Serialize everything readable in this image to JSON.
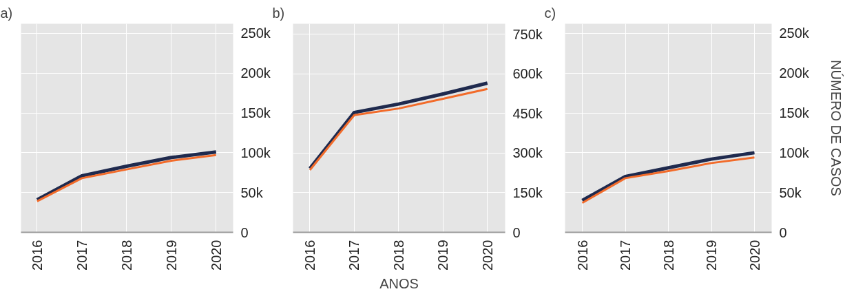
{
  "chart_data": [
    {
      "type": "line",
      "title": "a)",
      "x": [
        2016,
        2017,
        2018,
        2019,
        2020
      ],
      "xlim": [
        2015.64,
        2020.38
      ],
      "xticks": [
        2016,
        2017,
        2018,
        2019,
        2020
      ],
      "ylim": [
        0,
        262000
      ],
      "yticks": [
        0,
        {
          "value": 50000,
          "label": "50k"
        },
        {
          "value": 100000,
          "label": "100k"
        },
        {
          "value": 150000,
          "label": "150k"
        },
        {
          "value": 200000,
          "label": "200k"
        },
        {
          "value": 250000,
          "label": "250k"
        }
      ],
      "grid": true,
      "series": [
        {
          "color": "#1f2a4e",
          "values": [
            41000,
            71000,
            83000,
            94000,
            101000
          ]
        },
        {
          "color": "#f26b2a",
          "values": [
            39000,
            68000,
            79000,
            90000,
            97000
          ]
        }
      ]
    },
    {
      "type": "line",
      "title": "b)",
      "xlabel": "ANOS",
      "x": [
        2016,
        2017,
        2018,
        2019,
        2020
      ],
      "xlim": [
        2015.62,
        2020.4
      ],
      "xticks": [
        2016,
        2017,
        2018,
        2019,
        2020
      ],
      "ylim": [
        0,
        790000
      ],
      "yticks": [
        0,
        {
          "value": 150000,
          "label": "150k"
        },
        {
          "value": 300000,
          "label": "300k"
        },
        {
          "value": 450000,
          "label": "450k"
        },
        {
          "value": 600000,
          "label": "600k"
        },
        {
          "value": 750000,
          "label": "750k"
        }
      ],
      "grid": true,
      "series": [
        {
          "color": "#1f2a4e",
          "values": [
            242000,
            454000,
            486000,
            524000,
            565000
          ]
        },
        {
          "color": "#f26b2a",
          "values": [
            236000,
            444000,
            469000,
            506000,
            543000
          ]
        }
      ]
    },
    {
      "type": "line",
      "title": "c)",
      "ylabel": "NÚMERO DE CASOS",
      "x": [
        2016,
        2017,
        2018,
        2019,
        2020
      ],
      "xlim": [
        2015.6,
        2020.4
      ],
      "xticks": [
        2016,
        2017,
        2018,
        2019,
        2020
      ],
      "ylim": [
        0,
        262000
      ],
      "yticks": [
        0,
        {
          "value": 50000,
          "label": "50k"
        },
        {
          "value": 100000,
          "label": "100k"
        },
        {
          "value": 150000,
          "label": "150k"
        },
        {
          "value": 200000,
          "label": "200k"
        },
        {
          "value": 250000,
          "label": "250k"
        }
      ],
      "grid": true,
      "series": [
        {
          "color": "#1f2a4e",
          "values": [
            40000,
            70000,
            81000,
            92000,
            100000
          ]
        },
        {
          "color": "#f26b2a",
          "values": [
            37000,
            68000,
            77000,
            87000,
            94000
          ]
        }
      ]
    }
  ]
}
